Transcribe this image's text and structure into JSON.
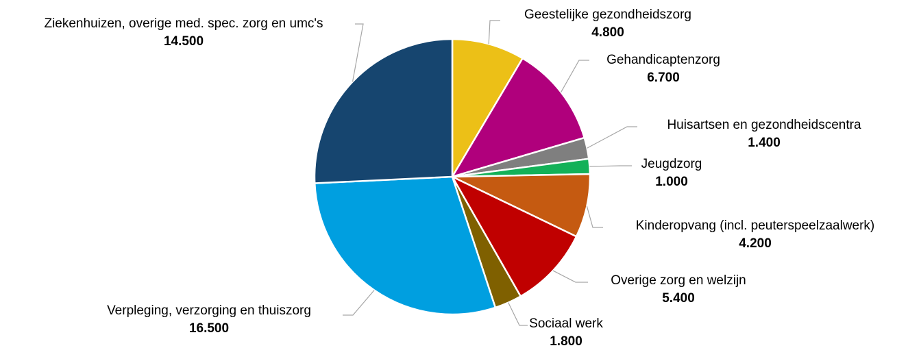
{
  "chart_data": {
    "type": "pie",
    "categories": [
      "Geestelijke gezondheidszorg",
      "Gehandicaptenzorg",
      "Huisartsen en gezondheidscentra",
      "Jeugdzorg",
      "Kinderopvang (incl. peuterspeelzaalwerk)",
      "Overige zorg en welzijn",
      "Sociaal werk",
      "Verpleging, verzorging en thuiszorg",
      "Ziekenhuizen, overige med. spec. zorg en umc's"
    ],
    "values": [
      4800,
      6700,
      1400,
      1000,
      4200,
      5400,
      1800,
      16500,
      14500
    ],
    "value_labels": [
      "4.800",
      "6.700",
      "1.400",
      "1.000",
      "4.200",
      "5.400",
      "1.800",
      "16.500",
      "14.500"
    ],
    "colors": [
      "#ecc017",
      "#b0007c",
      "#7f7f7f",
      "#13b158",
      "#c55a11",
      "#c00000",
      "#7f6000",
      "#009fe0",
      "#16456f"
    ]
  }
}
